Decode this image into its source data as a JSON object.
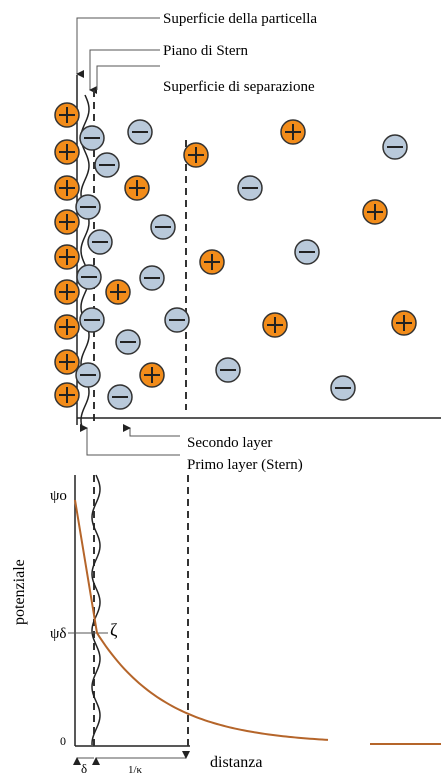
{
  "labels": {
    "particle_surface": "Superficie della particella",
    "stern_plane": "Piano di Stern",
    "separation_surface": "Superficie di separazione",
    "second_layer": "Secondo layer",
    "first_layer": "Primo layer (Stern)"
  },
  "graph": {
    "y_label": "potenziale",
    "x_label": "distanza",
    "psi_0": "ψo",
    "psi_delta": "ψδ",
    "zeta": "ζ",
    "zero": "0",
    "delta": "δ",
    "kappa": "1/κ"
  }
}
